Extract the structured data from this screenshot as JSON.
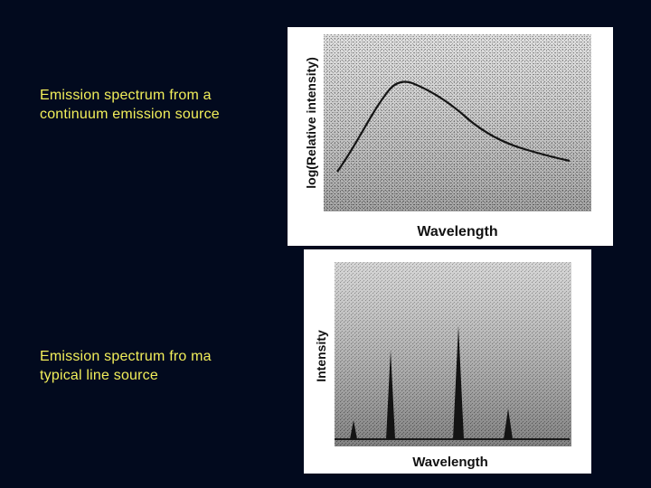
{
  "slide": {
    "background_color": "#020a1e",
    "caption_color": "#f2ee5a"
  },
  "continuum": {
    "caption_lines": [
      "Emission spectrum from a",
      "continuum emission source"
    ],
    "ylabel": "log(Relative intensity)",
    "xlabel": "Wavelength"
  },
  "line_source": {
    "caption_lines": [
      "Emission spectrum fro ma",
      "typical line source"
    ],
    "ylabel": "Intensity",
    "xlabel": "Wavelength"
  }
}
